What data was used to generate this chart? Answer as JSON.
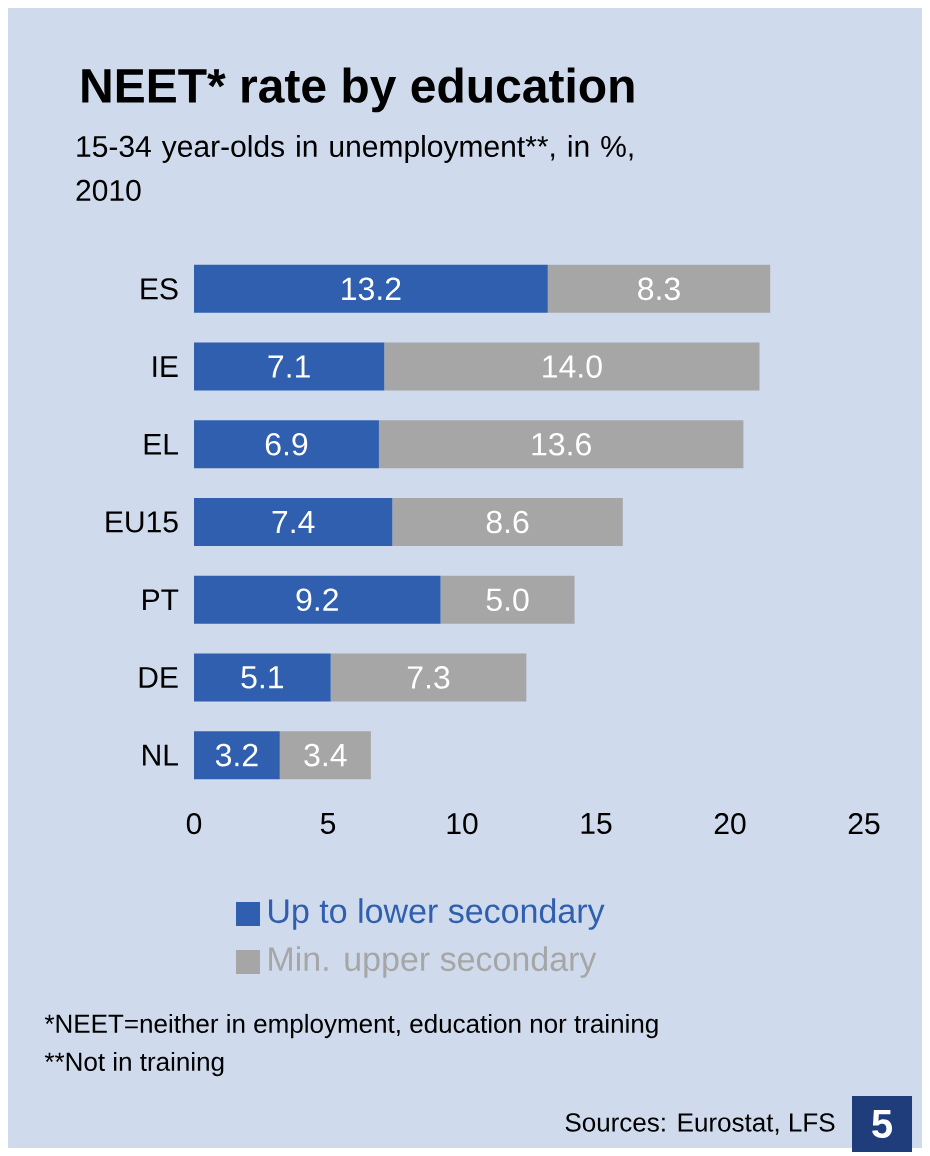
{
  "chart_data": {
    "type": "bar",
    "orientation": "horizontal",
    "stacked": true,
    "title": "NEET* rate by education",
    "subtitle": "15-34 year-olds in unemployment**, in %, 2010",
    "categories": [
      "ES",
      "IE",
      "EL",
      "EU15",
      "PT",
      "DE",
      "NL"
    ],
    "series": [
      {
        "name": "Up to lower secondary",
        "color": "#2f5fae",
        "values": [
          13.2,
          7.1,
          6.9,
          7.4,
          9.2,
          5.1,
          3.2
        ],
        "value_labels": [
          "13.2",
          "7.1",
          "6.9",
          "7.4",
          "9.2",
          "5.1",
          "3.2"
        ]
      },
      {
        "name": "Min. upper secondary",
        "color": "#a6a6a6",
        "values": [
          8.3,
          14.0,
          13.6,
          8.6,
          5.0,
          7.3,
          3.4
        ],
        "value_labels": [
          "8.3",
          "14.0",
          "13.6",
          "8.6",
          "5.0",
          "7.3",
          "3.4"
        ]
      }
    ],
    "xlim": [
      0,
      25
    ],
    "xticks": [
      0,
      5,
      10,
      15,
      20,
      25
    ],
    "legend": "bottom",
    "annotations": [
      "*NEET=neither in employment, education nor training",
      "**Not in training",
      "Sources: Eurostat, LFS",
      "5"
    ]
  }
}
